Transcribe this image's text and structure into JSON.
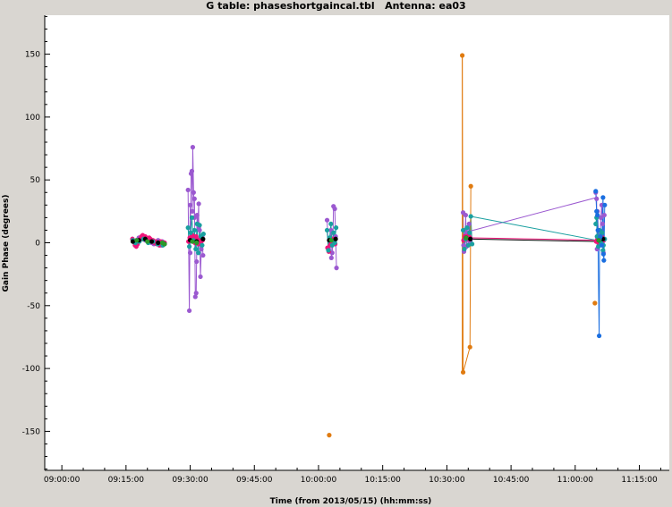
{
  "title": "G table: phaseshortgaincal.tbl   Antenna: ea03",
  "chart_data": {
    "type": "scatter",
    "title": "G table: phaseshortgaincal.tbl   Antenna: ea03",
    "xlabel": "Time (from 2013/05/15) (hh:mm:ss)",
    "ylabel": "Gain Phase (degrees)",
    "x_unit": "minutes after 09:00:00",
    "xlim": [
      -4,
      142
    ],
    "ylim": [
      -181,
      181
    ],
    "x_ticks": [
      0,
      15,
      30,
      45,
      60,
      75,
      90,
      105,
      120,
      135
    ],
    "x_tick_labels": [
      "09:00:00",
      "09:15:00",
      "09:30:00",
      "09:45:00",
      "10:00:00",
      "10:15:00",
      "10:30:00",
      "10:45:00",
      "11:00:00",
      "11:15:00"
    ],
    "y_ticks": [
      -150,
      -100,
      -50,
      0,
      50,
      100,
      150
    ],
    "y_tick_labels": [
      "-150",
      "-100",
      "-50",
      "0",
      "50",
      "100",
      "150"
    ],
    "grid": false,
    "legend": "none",
    "series": [
      {
        "color": "#9b59d0",
        "x": [
          16.5,
          16.8,
          17.0,
          17.5,
          18.0,
          18.5,
          19.0,
          19.5,
          20.0,
          20.5,
          21.0,
          21.5,
          22.0,
          22.5,
          23.0,
          23.5,
          24.0,
          29.5,
          29.8,
          30.0,
          30.2,
          30.4,
          30.6,
          30.8,
          31.0,
          31.2,
          31.4,
          31.6,
          31.8,
          32.0,
          32.2,
          32.4,
          32.6,
          32.8,
          33.0,
          30.0,
          30.5,
          31.0,
          31.5,
          32.0,
          62.0,
          62.3,
          62.6,
          62.9,
          63.2,
          63.5,
          63.8,
          64.0,
          64.2,
          63.0,
          63.4,
          93.8,
          94.0,
          94.2,
          94.4,
          94.6,
          94.8,
          95.0,
          95.2,
          95.4,
          95.6,
          93.9,
          94.3,
          124.8,
          125.0,
          125.2,
          125.4,
          125.6,
          125.8,
          126.0,
          126.2,
          126.4,
          126.6,
          126.8,
          125.1
        ],
        "y": [
          3,
          1,
          0,
          2,
          4,
          3,
          5,
          2,
          1,
          3,
          0,
          -1,
          1,
          2,
          -2,
          1,
          0,
          42,
          -54,
          30,
          55,
          57,
          76,
          40,
          20,
          -43,
          -40,
          22,
          15,
          31,
          10,
          -27,
          -5,
          5,
          -10,
          -8,
          25,
          35,
          -15,
          12,
          18,
          -5,
          3,
          10,
          -8,
          29,
          27,
          5,
          -20,
          -12,
          8,
          24,
          -7,
          10,
          22,
          -3,
          8,
          5,
          15,
          0,
          3,
          -2,
          6,
          40,
          35,
          25,
          10,
          -2,
          5,
          20,
          30,
          15,
          -8,
          22,
          -5
        ]
      },
      {
        "color": "#f0157a",
        "x": [
          16.5,
          16.8,
          17.1,
          17.4,
          17.7,
          18.0,
          18.3,
          18.6,
          18.9,
          19.2,
          19.5,
          19.8,
          20.1,
          20.4,
          20.7,
          21.0,
          21.3,
          21.6,
          21.9,
          22.2,
          22.5,
          22.8,
          23.1,
          23.4,
          23.7,
          24.0,
          29.6,
          29.9,
          30.2,
          30.5,
          30.8,
          31.1,
          31.4,
          31.7,
          32.0,
          32.3,
          32.6,
          32.9,
          62.1,
          62.4,
          62.7,
          63.0,
          63.3,
          63.6,
          63.9,
          93.9,
          94.2,
          94.5,
          94.8,
          95.1,
          95.4,
          124.9,
          125.2,
          125.5,
          125.8,
          126.1,
          126.4,
          126.7
        ],
        "y": [
          3,
          1,
          -2,
          -3,
          -1,
          1,
          3,
          5,
          6,
          4,
          5,
          3,
          2,
          4,
          3,
          1,
          2,
          0,
          1,
          -1,
          0,
          -2,
          1,
          -2,
          -1,
          0,
          1,
          4,
          2,
          6,
          3,
          0,
          5,
          2,
          -1,
          3,
          1,
          2,
          -4,
          -7,
          -2,
          0,
          3,
          1,
          -1,
          2,
          5,
          4,
          3,
          6,
          4,
          1,
          3,
          0,
          2,
          -1,
          4,
          2
        ]
      },
      {
        "color": "#1aa0a0",
        "x": [
          16.6,
          17.2,
          18.1,
          19.1,
          20.2,
          21.3,
          22.4,
          23.6,
          29.5,
          29.8,
          30.1,
          30.4,
          30.7,
          31.0,
          31.3,
          31.6,
          31.9,
          32.2,
          32.5,
          32.8,
          33.1,
          62.0,
          62.3,
          62.6,
          62.9,
          63.2,
          63.5,
          63.8,
          64.1,
          93.8,
          94.1,
          94.4,
          94.7,
          95.0,
          95.3,
          95.6,
          95.9,
          124.8,
          125.1,
          125.4,
          125.7,
          126.0,
          126.3,
          126.6,
          126.9,
          125.0,
          126.5
        ],
        "y": [
          2,
          0,
          1,
          3,
          0,
          1,
          -1,
          -2,
          12,
          -3,
          8,
          20,
          2,
          10,
          -5,
          15,
          -8,
          14,
          5,
          -2,
          7,
          10,
          -6,
          4,
          15,
          -2,
          8,
          0,
          12,
          10,
          -5,
          3,
          12,
          -2,
          8,
          21,
          -1,
          15,
          5,
          -3,
          10,
          0,
          8,
          -2,
          3,
          20,
          -6
        ]
      },
      {
        "color": "#000000",
        "x": [
          16.6,
          18.0,
          19.5,
          21.0,
          22.5,
          24.0,
          30.0,
          31.5,
          33.0,
          62.5,
          64.0,
          94.5,
          95.5,
          125.5,
          126.5
        ],
        "y": [
          1,
          2,
          3,
          1,
          0,
          -1,
          2,
          1,
          3,
          2,
          3,
          4,
          3,
          2,
          3
        ]
      },
      {
        "color": "#e07b10",
        "x": [
          62.5,
          93.6,
          93.8,
          95.4,
          95.6,
          124.6
        ],
        "y": [
          -153,
          149,
          -103,
          -83,
          45,
          -48
        ]
      },
      {
        "color": "#1a6ee0",
        "x": [
          124.8,
          125.0,
          125.3,
          125.6,
          125.9,
          126.2,
          126.5,
          126.7,
          126.9,
          125.2,
          126.6,
          125.7
        ],
        "y": [
          41,
          25,
          10,
          -74,
          5,
          -2,
          36,
          -14,
          30,
          22,
          -9,
          3
        ]
      },
      {
        "color": "#2a9a2a",
        "x": [
          17.5,
          20.0,
          23.5,
          24.0,
          30.5,
          31.5,
          63.0,
          94.5,
          125.5
        ],
        "y": [
          2,
          1,
          0,
          -1,
          1,
          0,
          2,
          4,
          2
        ]
      }
    ],
    "connectors": [
      {
        "color": "#9b59d0",
        "from": [
          94.0,
          8
        ],
        "to": [
          125.0,
          36
        ]
      },
      {
        "color": "#1aa0a0",
        "from": [
          95.6,
          21
        ],
        "to": [
          125.0,
          2
        ]
      },
      {
        "color": "#f0157a",
        "from": [
          94.5,
          4
        ],
        "to": [
          125.5,
          2
        ]
      },
      {
        "color": "#000000",
        "from": [
          94.8,
          3
        ],
        "to": [
          125.8,
          1
        ]
      },
      {
        "color": "#e07b10",
        "from": [
          93.6,
          149
        ],
        "to": [
          93.6,
          -103
        ]
      }
    ]
  }
}
